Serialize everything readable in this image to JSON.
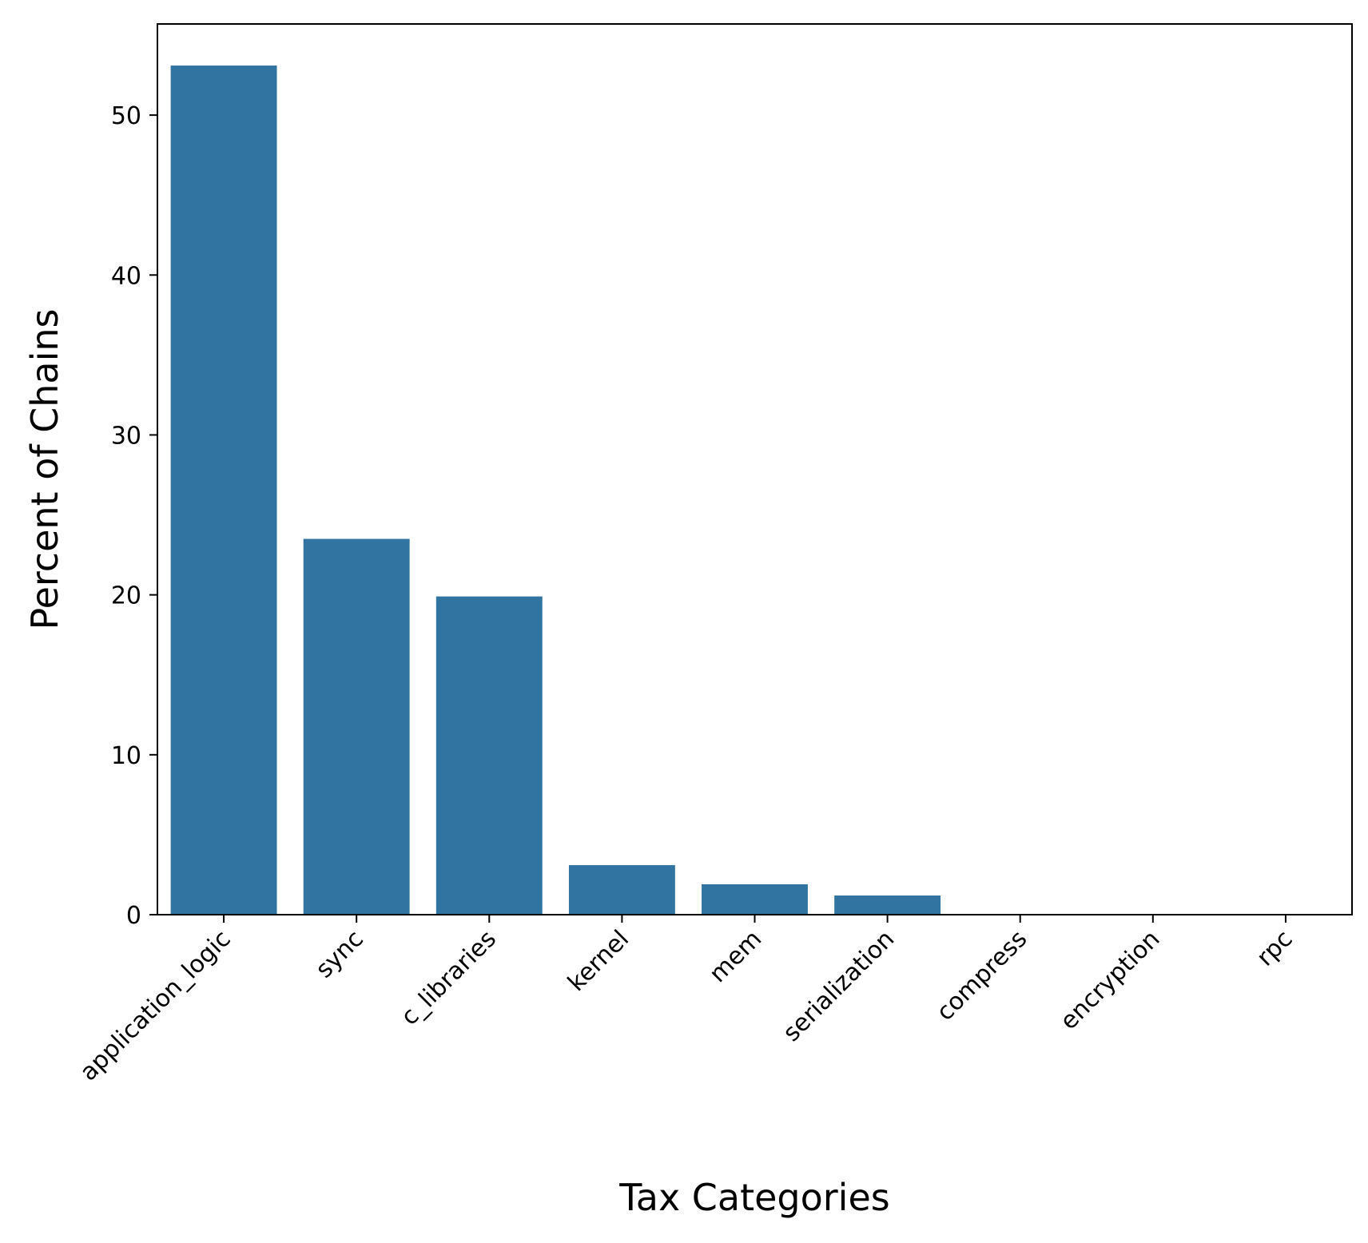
{
  "chart_data": {
    "type": "bar",
    "title": "",
    "xlabel": "Tax Categories",
    "ylabel": "Percent of Chains",
    "categories": [
      "application_logic",
      "sync",
      "c_libraries",
      "kernel",
      "mem",
      "serialization",
      "compress",
      "encryption",
      "rpc"
    ],
    "values": [
      53.1,
      23.5,
      19.9,
      3.1,
      1.9,
      1.2,
      0,
      0,
      0
    ],
    "ylim": [
      0,
      55.7
    ],
    "yticks": [
      0,
      10,
      20,
      30,
      40,
      50
    ],
    "grid": false,
    "bar_color": "#3274a1"
  }
}
